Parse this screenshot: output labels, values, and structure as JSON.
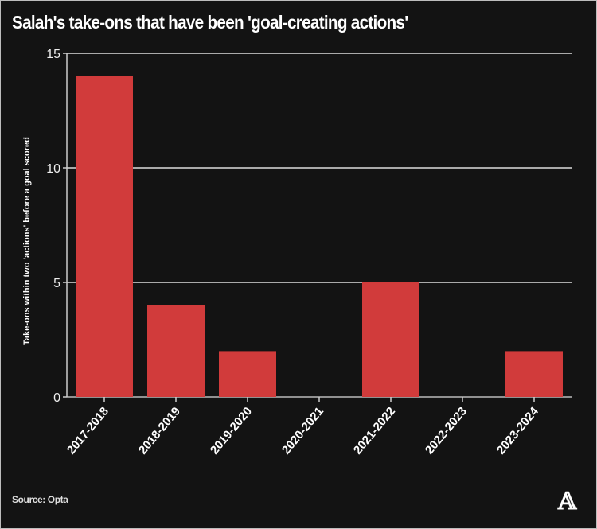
{
  "chart_data": {
    "type": "bar",
    "title": "Salah's take-ons that have been 'goal-creating actions'",
    "xlabel": "",
    "ylabel": "Take-ons within two 'actions' before a goal scored",
    "categories": [
      "2017-2018",
      "2018-2019",
      "2019-2020",
      "2020-2021",
      "2021-2022",
      "2022-2023",
      "2023-2024"
    ],
    "values": [
      14,
      4,
      2,
      0,
      5,
      0,
      2
    ],
    "ylim": [
      0,
      15
    ],
    "yticks": [
      0,
      5,
      10,
      15
    ],
    "grid": true,
    "bar_color": "#d13b3b",
    "source": "Source: Opta",
    "logo": "A"
  }
}
